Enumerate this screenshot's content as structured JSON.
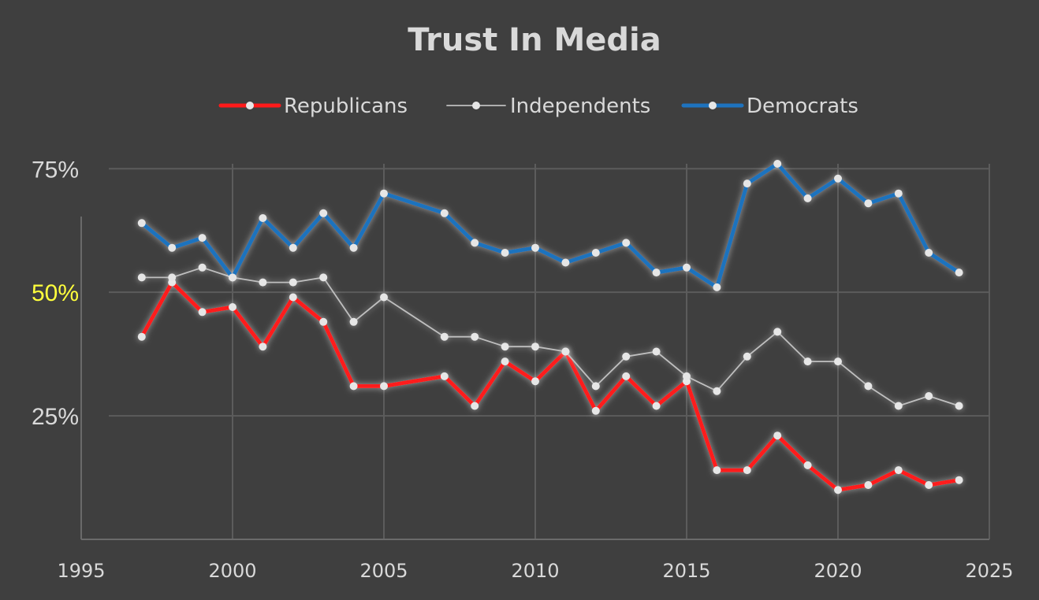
{
  "chart_data": {
    "type": "line",
    "title": "Trust In Media",
    "xlim": [
      1995,
      2025
    ],
    "ylim": [
      0,
      0.76
    ],
    "x_ticks": [
      1995,
      2000,
      2005,
      2010,
      2015,
      2020,
      2025
    ],
    "y_ticks": [
      {
        "value": 0.25,
        "label": "25%",
        "color": "#d9d9d9"
      },
      {
        "value": 0.5,
        "label": "50%",
        "color": "#ffff3c"
      },
      {
        "value": 0.75,
        "label": "75%",
        "color": "#d9d9d9"
      }
    ],
    "grid": true,
    "legend_position": "top",
    "series": [
      {
        "name": "Republicans",
        "color": "#ff1a1a",
        "style": "thick",
        "x": [
          1997,
          1998,
          1999,
          2000,
          2001,
          2002,
          2003,
          2004,
          2005,
          2007,
          2008,
          2009,
          2010,
          2011,
          2012,
          2013,
          2014,
          2015,
          2016,
          2017,
          2018,
          2019,
          2020,
          2021,
          2022,
          2023,
          2024
        ],
        "y": [
          0.41,
          0.52,
          0.46,
          0.47,
          0.39,
          0.49,
          0.44,
          0.31,
          0.31,
          0.33,
          0.27,
          0.36,
          0.32,
          0.38,
          0.26,
          0.33,
          0.27,
          0.32,
          0.14,
          0.14,
          0.21,
          0.15,
          0.1,
          0.11,
          0.14,
          0.11,
          0.12
        ]
      },
      {
        "name": "Independents",
        "color": "#bfbfbf",
        "style": "thin",
        "x": [
          1997,
          1998,
          1999,
          2000,
          2001,
          2002,
          2003,
          2004,
          2005,
          2007,
          2008,
          2009,
          2010,
          2011,
          2012,
          2013,
          2014,
          2015,
          2016,
          2017,
          2018,
          2019,
          2020,
          2021,
          2022,
          2023,
          2024
        ],
        "y": [
          0.53,
          0.53,
          0.55,
          0.53,
          0.52,
          0.52,
          0.53,
          0.44,
          0.49,
          0.41,
          0.41,
          0.39,
          0.39,
          0.38,
          0.31,
          0.37,
          0.38,
          0.33,
          0.3,
          0.37,
          0.42,
          0.36,
          0.36,
          0.31,
          0.27,
          0.29,
          0.27
        ]
      },
      {
        "name": "Democrats",
        "color": "#1e73be",
        "style": "thick",
        "x": [
          1997,
          1998,
          1999,
          2000,
          2001,
          2002,
          2003,
          2004,
          2005,
          2007,
          2008,
          2009,
          2010,
          2011,
          2012,
          2013,
          2014,
          2015,
          2016,
          2017,
          2018,
          2019,
          2020,
          2021,
          2022,
          2023,
          2024
        ],
        "y": [
          0.64,
          0.59,
          0.61,
          0.53,
          0.65,
          0.59,
          0.66,
          0.59,
          0.7,
          0.66,
          0.6,
          0.58,
          0.59,
          0.56,
          0.58,
          0.6,
          0.54,
          0.55,
          0.51,
          0.72,
          0.76,
          0.69,
          0.73,
          0.68,
          0.7,
          0.58,
          0.54
        ]
      }
    ]
  }
}
